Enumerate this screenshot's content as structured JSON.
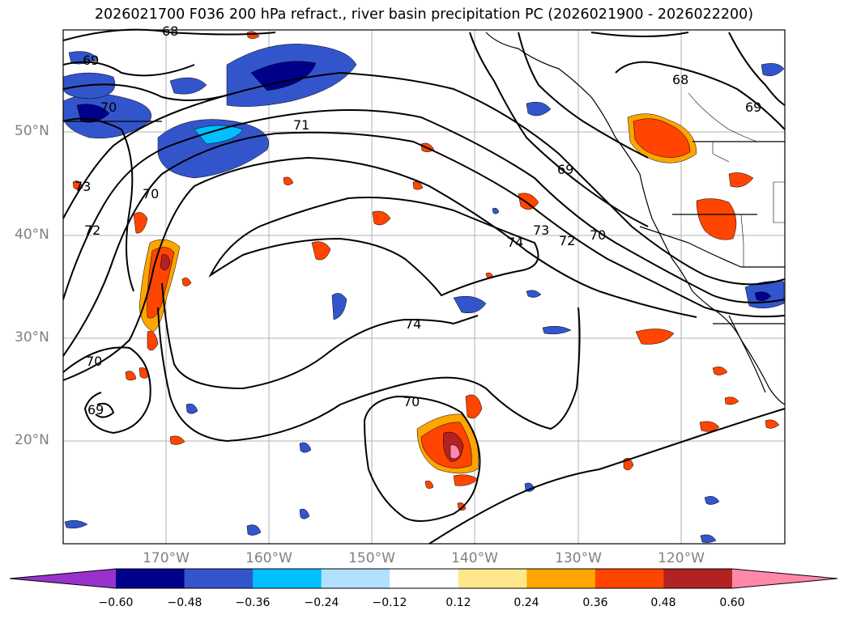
{
  "title": "2026021700 F036 200 hPa refract., river basin precipitation PC (2026021900 - 2026022200)",
  "lat_labels": [
    "50°N",
    "40°N",
    "30°N",
    "20°N"
  ],
  "lon_labels": [
    "170°W",
    "160°W",
    "150°W",
    "140°W",
    "130°W",
    "120°W"
  ],
  "contour_labels": [
    "68",
    "69",
    "70",
    "71",
    "73",
    "70",
    "72",
    "69",
    "73",
    "74",
    "72",
    "70",
    "68",
    "69",
    "74",
    "70",
    "70",
    "69"
  ],
  "colorbar": {
    "ticks": [
      "−0.60",
      "−0.48",
      "−0.36",
      "−0.24",
      "−0.12",
      "0.12",
      "0.24",
      "0.36",
      "0.48",
      "0.60"
    ],
    "colors": [
      "#9932cc",
      "#00008b",
      "#3355cc",
      "#00bfff",
      "#b0e2ff",
      "#ffffff",
      "#ffe88c",
      "#ffa500",
      "#ff4500",
      "#b22222",
      "#ff88aa"
    ]
  }
}
